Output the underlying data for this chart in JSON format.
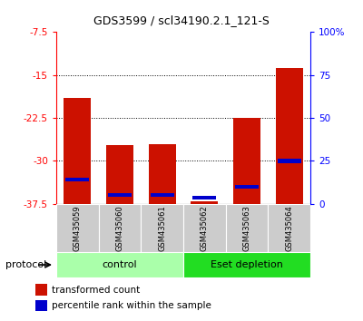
{
  "title": "GDS3599 / scl34190.2.1_121-S",
  "samples": [
    "GSM435059",
    "GSM435060",
    "GSM435061",
    "GSM435062",
    "GSM435063",
    "GSM435064"
  ],
  "red_tops": [
    -19.0,
    -27.2,
    -27.0,
    -37.0,
    -22.5,
    -13.8
  ],
  "blue_percentiles": [
    14.0,
    5.0,
    5.0,
    3.5,
    10.0,
    25.0
  ],
  "ylim": [
    -37.5,
    -7.5
  ],
  "yticks_left": [
    -37.5,
    -30.0,
    -22.5,
    -15.0,
    -7.5
  ],
  "yticks_right": [
    0,
    25,
    50,
    75,
    100
  ],
  "groups": [
    {
      "label": "control",
      "samples": [
        0,
        1,
        2
      ],
      "color": "#aaffaa"
    },
    {
      "label": "Eset depletion",
      "samples": [
        3,
        4,
        5
      ],
      "color": "#22dd22"
    }
  ],
  "bar_width": 0.65,
  "red_color": "#cc1100",
  "blue_color": "#0000cc",
  "grid_color": "#000000",
  "tick_area_bg": "#cccccc",
  "protocol_label": "protocol",
  "legend_red": "transformed count",
  "legend_blue": "percentile rank within the sample"
}
